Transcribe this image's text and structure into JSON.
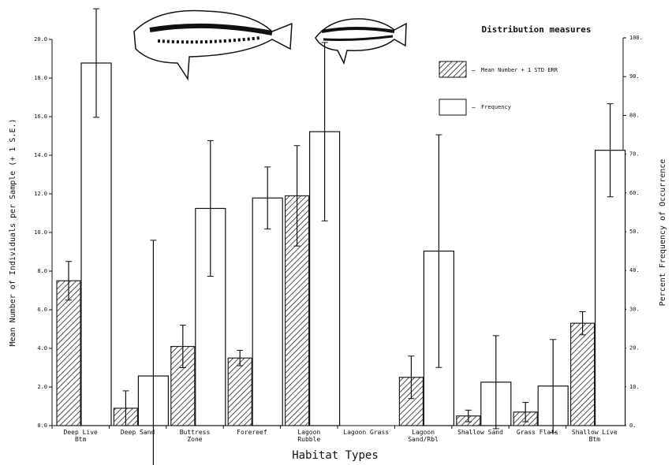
{
  "chart_data": {
    "type": "bar",
    "title": "Distribution measures",
    "x_label": "Habitat Types",
    "y_label": "Mean Number of Individuals per Sample (+ 1 S.E.)",
    "y2_label": "Percent Frequency of Occurrence",
    "categories": [
      "Deep Live Btm",
      "Deep Sand",
      "Buttress Zone",
      "Forereef",
      "Lagoon Rubble",
      "Lagoon Grass",
      "Lagoon Sand/Rbl",
      "Shallow Sand",
      "Grass Flats",
      "Shallow Live Btm"
    ],
    "series": [
      {
        "name": "Mean Number + 1 STD ERR",
        "color": "#222222",
        "hatched": true,
        "values": [
          7.5,
          0.9,
          4.1,
          3.5,
          11.9,
          null,
          2.5,
          0.5,
          0.7,
          5.3
        ],
        "errors": [
          1.0,
          0.9,
          1.1,
          0.4,
          2.6,
          null,
          1.1,
          0.3,
          0.5,
          0.6
        ]
      },
      {
        "name": "Frequency",
        "color": "#ffffff",
        "axis": "y2",
        "values": [
          93.5,
          12.8,
          56,
          58.7,
          75.8,
          null,
          45,
          11.2,
          10.2,
          71
        ],
        "errors": [
          14,
          35,
          17.5,
          8,
          23,
          null,
          30,
          12,
          12,
          12
        ]
      }
    ],
    "ylim": [
      0,
      20
    ],
    "yticks": [
      {
        "value": 0,
        "label": "0.0"
      },
      {
        "value": 2,
        "label": "2.0"
      },
      {
        "value": 4,
        "label": "4.0"
      },
      {
        "value": 6,
        "label": "6.0"
      },
      {
        "value": 8,
        "label": "8.0"
      },
      {
        "value": 10,
        "label": "10.0"
      },
      {
        "value": 12,
        "label": "12.0"
      },
      {
        "value": 14,
        "label": "14.0"
      },
      {
        "value": 16,
        "label": "16.0"
      },
      {
        "value": 18,
        "label": "18.0"
      },
      {
        "value": 20,
        "label": "20.0"
      }
    ],
    "y2lim": [
      0,
      100
    ],
    "y2ticks": [
      {
        "value": 0,
        "label": "0."
      },
      {
        "value": 10,
        "label": "10."
      },
      {
        "value": 20,
        "label": "20."
      },
      {
        "value": 30,
        "label": "30."
      },
      {
        "value": 40,
        "label": "40."
      },
      {
        "value": 50,
        "label": "50."
      },
      {
        "value": 60,
        "label": "60."
      },
      {
        "value": 70,
        "label": "70."
      },
      {
        "value": 80,
        "label": "80."
      },
      {
        "value": 90,
        "label": "90."
      },
      {
        "value": 100,
        "label": "100."
      }
    ]
  }
}
